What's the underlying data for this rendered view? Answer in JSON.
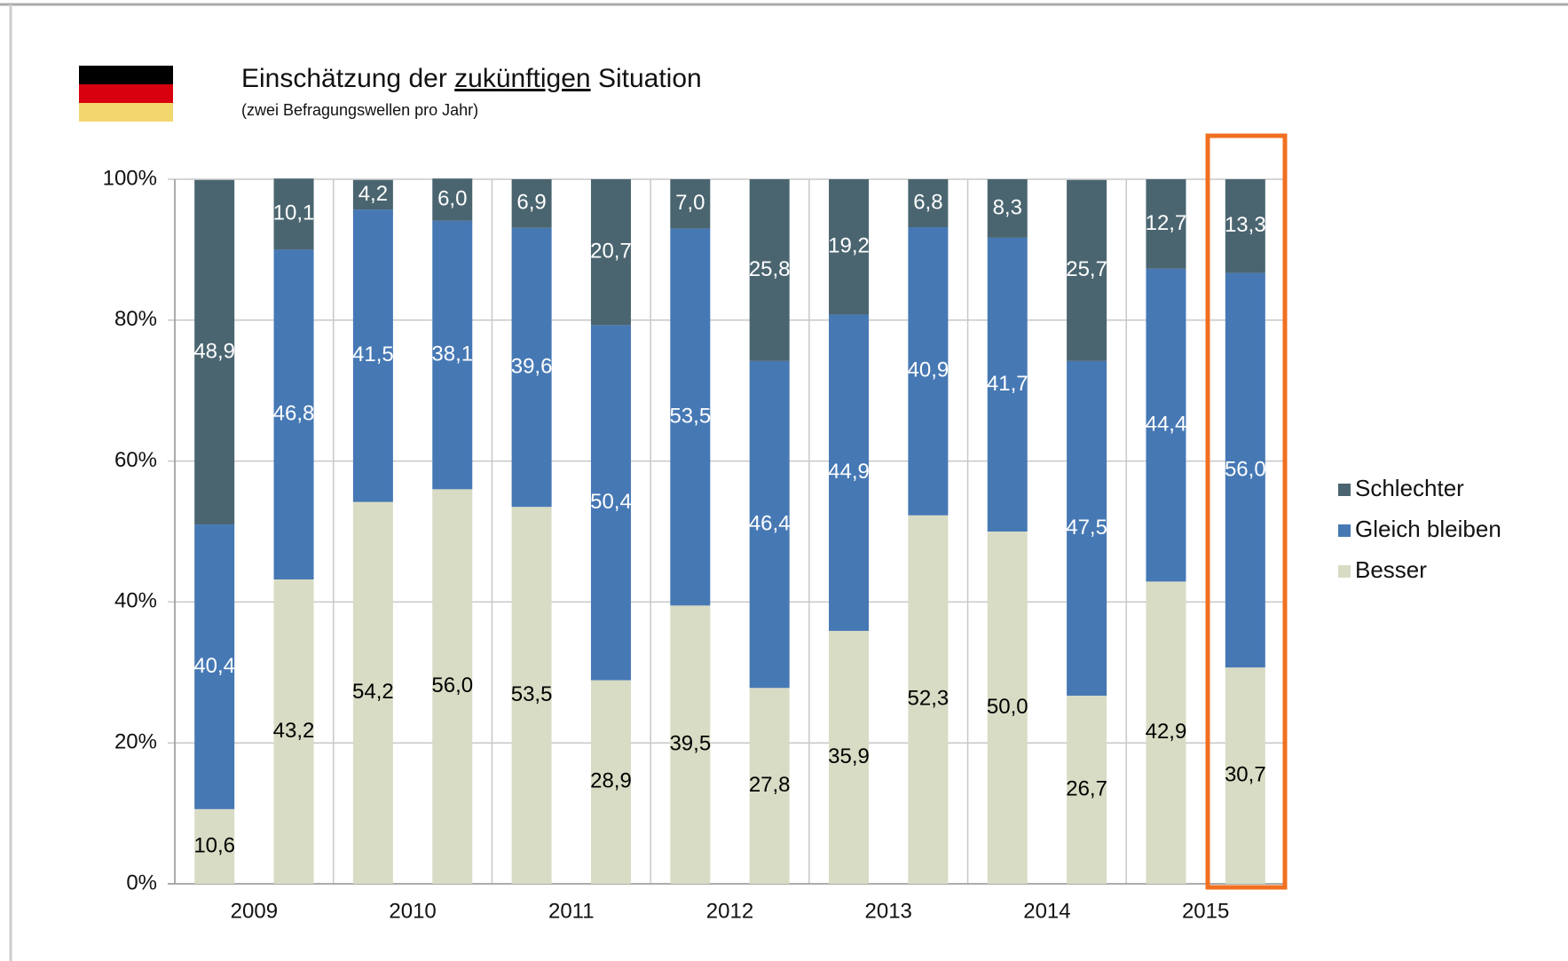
{
  "chart_data": {
    "type": "stacked_bar",
    "title": [
      "Einschätzung der ",
      "zukünftigen",
      " Situation"
    ],
    "subtitle": "(zwei Befragungswellen pro Jahr)",
    "x_groups": [
      "2009",
      "2010",
      "2011",
      "2012",
      "2013",
      "2014",
      "2015"
    ],
    "categories": [
      null,
      null,
      null,
      null,
      null,
      null,
      null,
      null,
      null,
      null,
      null,
      null,
      null,
      null
    ],
    "series": [
      {
        "name": "Schlechter",
        "color": "#4a6570",
        "label_color": "#ffffff",
        "values": [
          48.9,
          10.1,
          4.2,
          6.0,
          6.9,
          20.7,
          7.0,
          25.8,
          19.2,
          6.8,
          8.3,
          25.7,
          12.7,
          13.3
        ],
        "value_labels": [
          "48,9",
          "10,1",
          "4,2",
          "6,0",
          "6,9",
          "20,7",
          "7,0",
          "25,8",
          "19,2",
          "6,8",
          "8,3",
          "25,7",
          "12,7",
          "13,3"
        ]
      },
      {
        "name": "Gleich bleiben",
        "color": "#4678b4",
        "label_color": "#ffffff",
        "values": [
          40.4,
          46.8,
          41.5,
          38.1,
          39.6,
          50.4,
          53.5,
          46.4,
          44.9,
          40.9,
          41.7,
          47.5,
          44.4,
          56.0
        ],
        "value_labels": [
          "40,4",
          "46,8",
          "41,5",
          "38,1",
          "39,6",
          "50,4",
          "53,5",
          "46,4",
          "44,9",
          "40,9",
          "41,7",
          "47,5",
          "44,4",
          "56,0"
        ]
      },
      {
        "name": "Besser",
        "color": "#d8dcc4",
        "label_color": "#000000",
        "values": [
          10.6,
          43.2,
          54.2,
          56.0,
          53.5,
          28.9,
          39.5,
          27.8,
          35.9,
          52.3,
          50.0,
          26.7,
          42.9,
          30.7
        ],
        "value_labels": [
          "10,6",
          "43,2",
          "54,2",
          "56,0",
          "53,5",
          "28,9",
          "39,5",
          "27,8",
          "35,9",
          "52,3",
          "50,0",
          "26,7",
          "42,9",
          "30,7"
        ]
      }
    ],
    "ylim": [
      0,
      100
    ],
    "yticks": [
      {
        "value": 0,
        "label": "0%"
      },
      {
        "value": 20,
        "label": "20%"
      },
      {
        "value": 40,
        "label": "40%"
      },
      {
        "value": 60,
        "label": "60%"
      },
      {
        "value": 80,
        "label": "80%"
      },
      {
        "value": 100,
        "label": "100%"
      }
    ],
    "grid": true,
    "legend": "right"
  }
}
